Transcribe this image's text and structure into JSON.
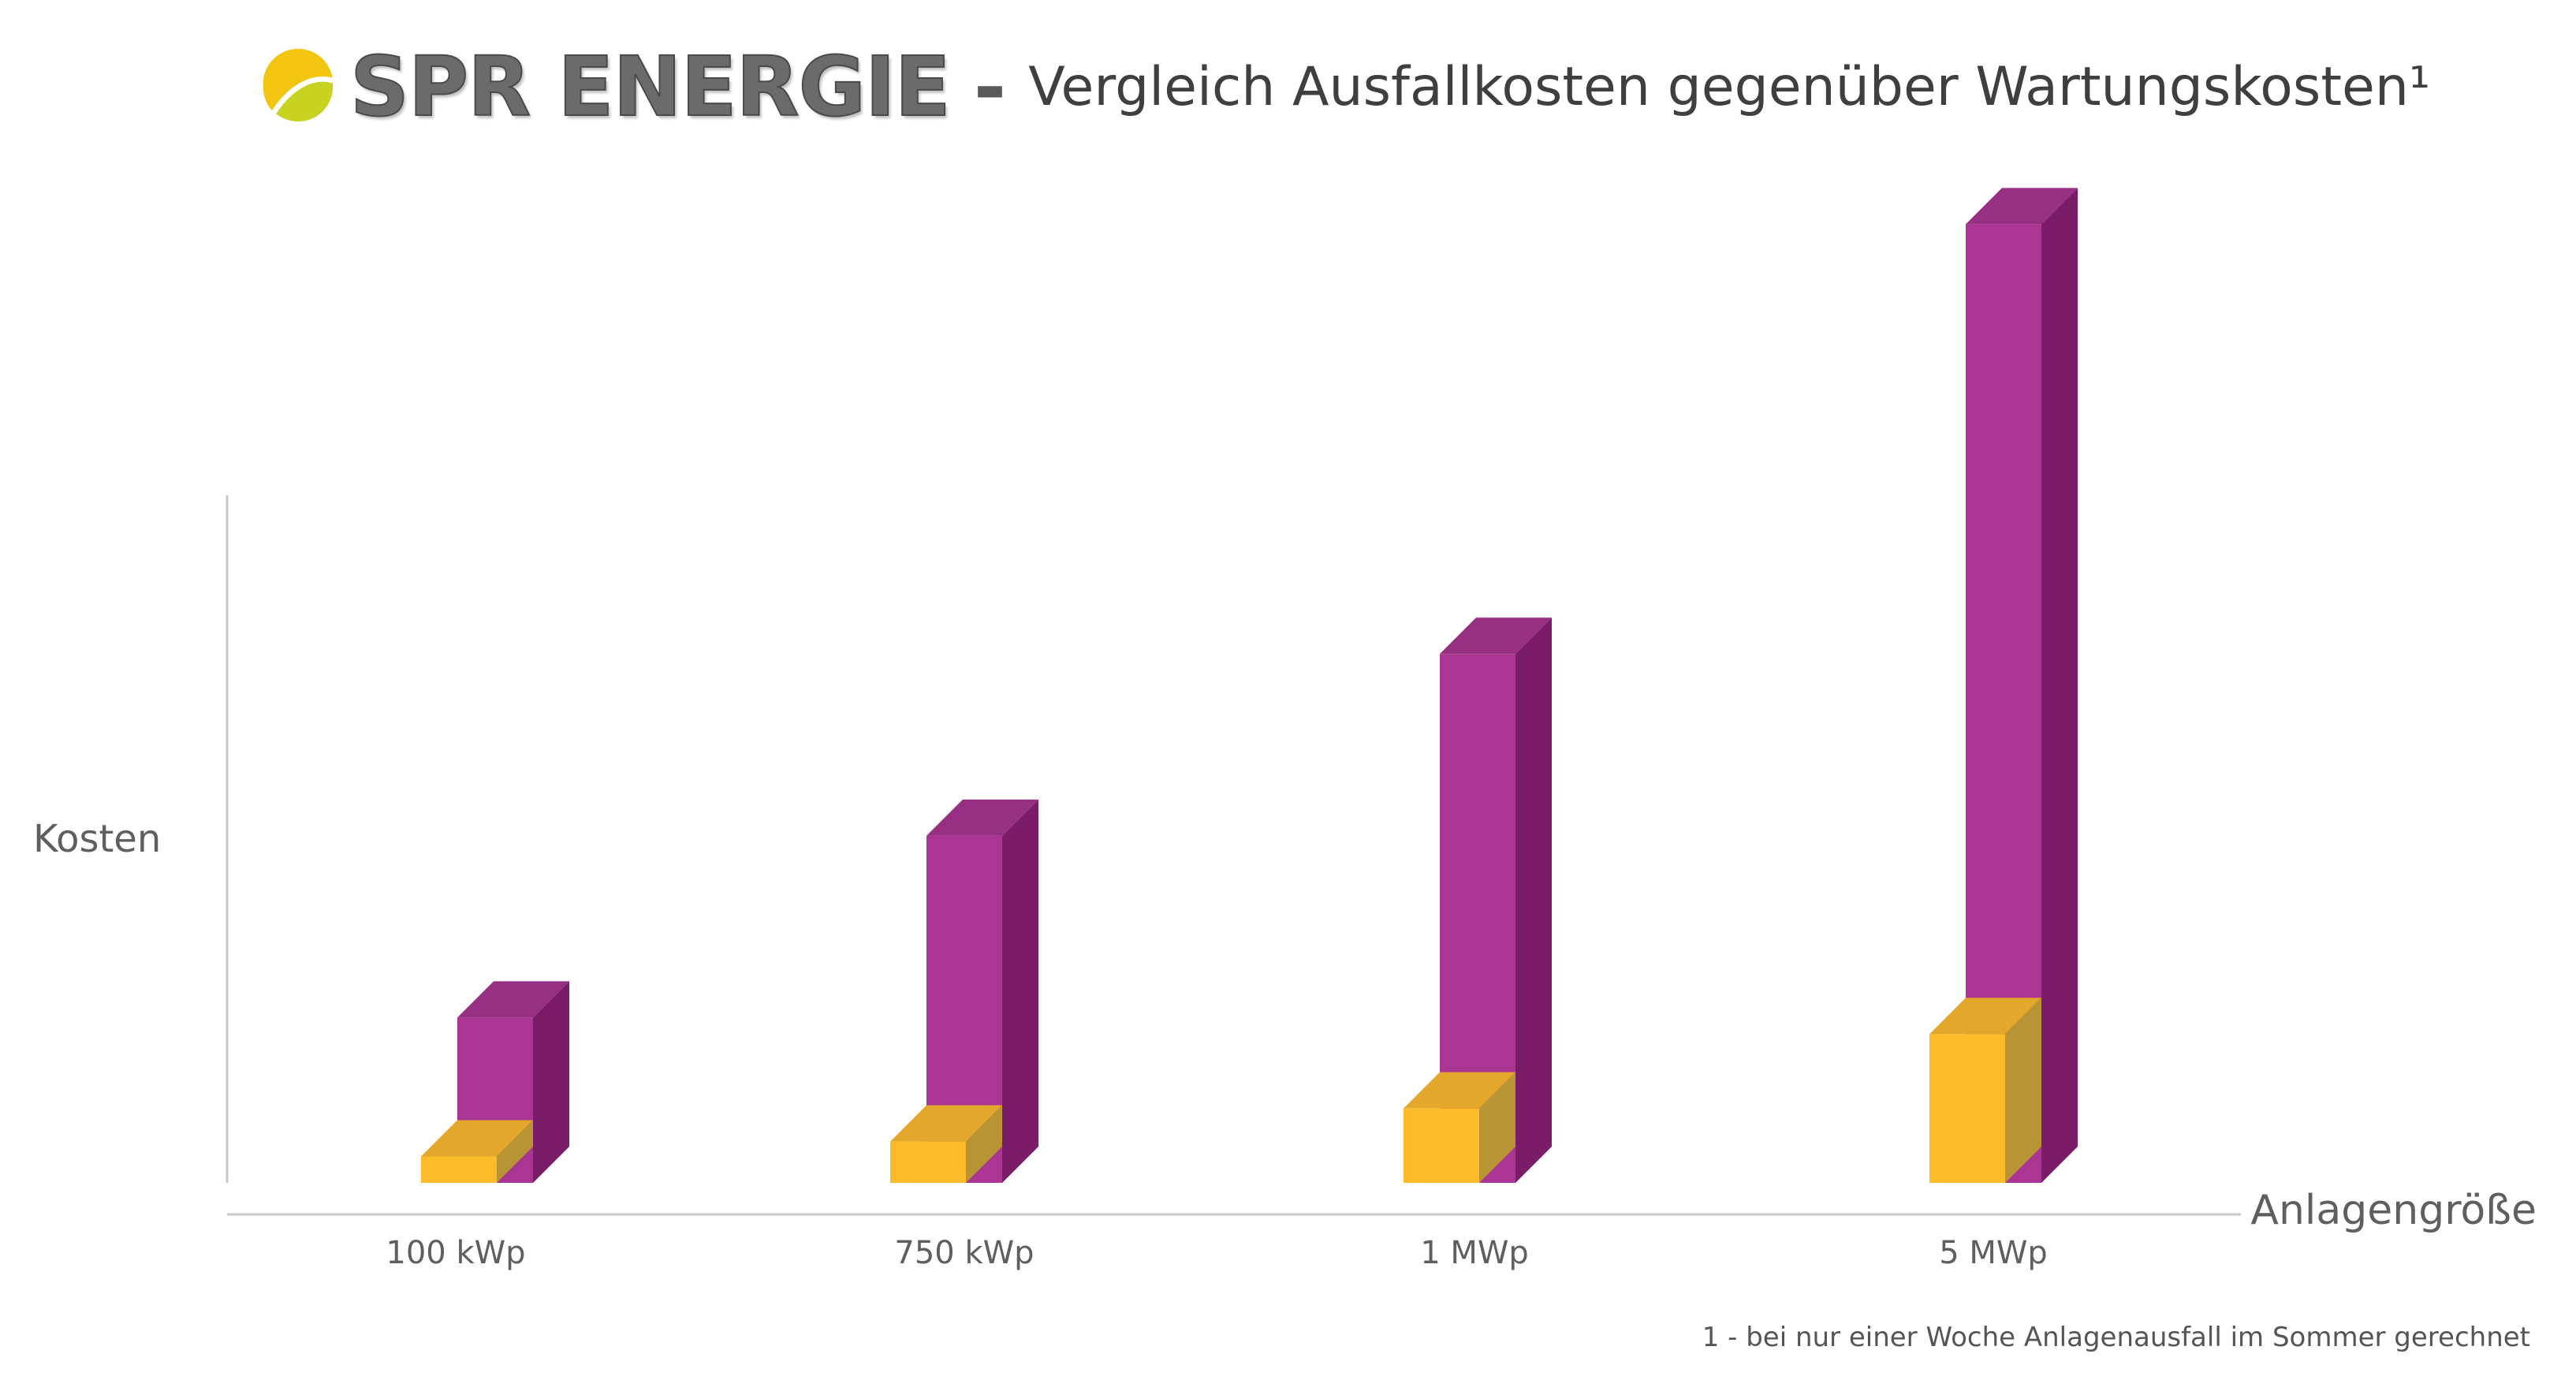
{
  "header": {
    "brand": "SPR ENERGIE",
    "separator": "-",
    "title": "Vergleich Ausfallkosten gegenüber Wartungskosten¹",
    "logo_icon": "sun-leaf-logo-icon"
  },
  "colors": {
    "ausfall_front": "#aa3593",
    "ausfall_side": "#7b1c69",
    "ausfall_top": "#972f83",
    "wartung_front": "#fcbb2a",
    "wartung_side": "#b89434",
    "wartung_top": "#e2a72b",
    "axis": "#c8c8c8"
  },
  "chart_data": {
    "type": "bar",
    "xlabel": "Anlagengröße",
    "ylabel": "Kosten",
    "categories": [
      "100 kWp",
      "750 kWp",
      "1 MWp",
      "5 MWp"
    ],
    "series": [
      {
        "key": "ausfall",
        "values": [
          20,
          42,
          64,
          116
        ]
      },
      {
        "key": "wartung",
        "values": [
          3.2,
          5.0,
          9.0,
          18.0
        ]
      }
    ],
    "ylim": [
      0,
      125
    ],
    "style": "3d-column",
    "grid": false,
    "legend": "none"
  },
  "footnote": "1 - bei nur einer Woche Anlagenausfall im Sommer gerechnet"
}
